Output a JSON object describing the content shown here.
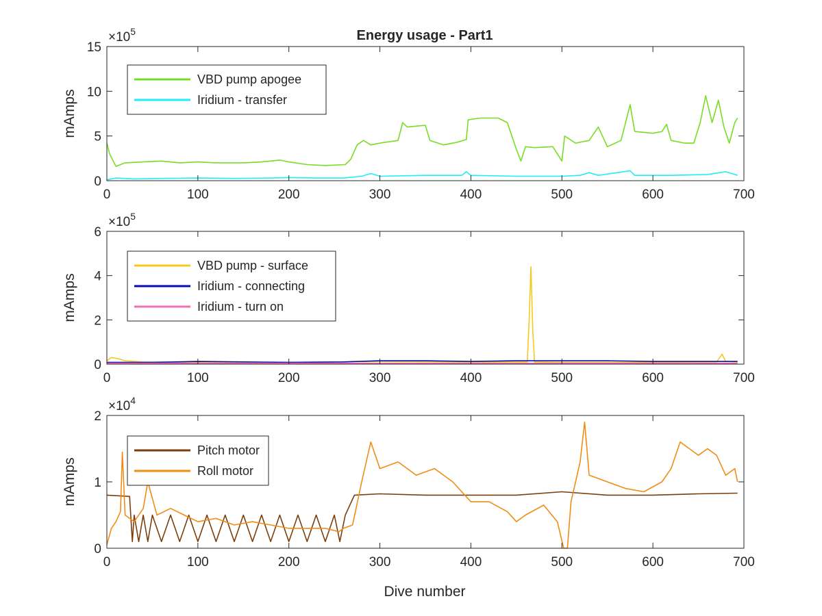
{
  "figure": {
    "title": "Energy usage - Part1",
    "xlabel": "Dive number"
  },
  "chart_data": [
    {
      "type": "line",
      "title": "Energy usage - Part1",
      "ylabel": "mAmps",
      "exponent": "5",
      "xlim": [
        0,
        700
      ],
      "ylim": [
        0,
        15
      ],
      "xticks": [
        "0",
        "100",
        "200",
        "300",
        "400",
        "500",
        "600",
        "700"
      ],
      "yticks": [
        "0",
        "5",
        "10",
        "15"
      ],
      "legend_position": "top-left",
      "series": [
        {
          "name": "VBD pump apogee",
          "color": "#77DD22",
          "points": [
            [
              0,
              4.2
            ],
            [
              3,
              3.0
            ],
            [
              10,
              1.6
            ],
            [
              20,
              2.0
            ],
            [
              40,
              2.1
            ],
            [
              60,
              2.2
            ],
            [
              80,
              2.0
            ],
            [
              100,
              2.1
            ],
            [
              120,
              2.0
            ],
            [
              150,
              2.0
            ],
            [
              170,
              2.1
            ],
            [
              190,
              2.3
            ],
            [
              200,
              2.1
            ],
            [
              220,
              1.8
            ],
            [
              240,
              1.7
            ],
            [
              262,
              1.8
            ],
            [
              268,
              2.4
            ],
            [
              275,
              4.0
            ],
            [
              282,
              4.5
            ],
            [
              290,
              4.0
            ],
            [
              300,
              4.2
            ],
            [
              320,
              4.5
            ],
            [
              325,
              6.5
            ],
            [
              330,
              6.0
            ],
            [
              350,
              6.2
            ],
            [
              355,
              4.5
            ],
            [
              370,
              4.0
            ],
            [
              385,
              4.3
            ],
            [
              395,
              4.6
            ],
            [
              397,
              6.8
            ],
            [
              410,
              7.0
            ],
            [
              430,
              7.0
            ],
            [
              440,
              6.5
            ],
            [
              450,
              3.5
            ],
            [
              455,
              2.2
            ],
            [
              460,
              3.8
            ],
            [
              470,
              3.7
            ],
            [
              490,
              3.8
            ],
            [
              500,
              2.2
            ],
            [
              503,
              5.0
            ],
            [
              515,
              4.2
            ],
            [
              530,
              4.5
            ],
            [
              540,
              6.0
            ],
            [
              550,
              3.8
            ],
            [
              565,
              4.5
            ],
            [
              575,
              8.5
            ],
            [
              580,
              5.5
            ],
            [
              600,
              5.3
            ],
            [
              610,
              5.5
            ],
            [
              615,
              6.3
            ],
            [
              620,
              4.5
            ],
            [
              635,
              4.2
            ],
            [
              645,
              4.2
            ],
            [
              652,
              6.5
            ],
            [
              658,
              9.5
            ],
            [
              665,
              6.5
            ],
            [
              672,
              9.0
            ],
            [
              678,
              6.0
            ],
            [
              684,
              4.2
            ],
            [
              690,
              6.5
            ],
            [
              693,
              7.0
            ]
          ]
        },
        {
          "name": "Iridium - transfer",
          "color": "#1EEEF5",
          "points": [
            [
              0,
              0.1
            ],
            [
              10,
              0.3
            ],
            [
              30,
              0.2
            ],
            [
              60,
              0.25
            ],
            [
              100,
              0.3
            ],
            [
              140,
              0.25
            ],
            [
              180,
              0.3
            ],
            [
              200,
              0.35
            ],
            [
              230,
              0.3
            ],
            [
              260,
              0.3
            ],
            [
              280,
              0.5
            ],
            [
              290,
              0.8
            ],
            [
              300,
              0.5
            ],
            [
              350,
              0.6
            ],
            [
              390,
              0.6
            ],
            [
              395,
              1.0
            ],
            [
              400,
              0.6
            ],
            [
              450,
              0.5
            ],
            [
              500,
              0.5
            ],
            [
              520,
              0.6
            ],
            [
              530,
              0.9
            ],
            [
              540,
              0.6
            ],
            [
              575,
              1.1
            ],
            [
              580,
              0.6
            ],
            [
              620,
              0.6
            ],
            [
              660,
              0.7
            ],
            [
              680,
              1.0
            ],
            [
              693,
              0.6
            ]
          ]
        }
      ]
    },
    {
      "type": "line",
      "ylabel": "mAmps",
      "exponent": "5",
      "xlim": [
        0,
        700
      ],
      "ylim": [
        0,
        6
      ],
      "xticks": [
        "0",
        "100",
        "200",
        "300",
        "400",
        "500",
        "600",
        "700"
      ],
      "yticks": [
        "0",
        "2",
        "4",
        "6"
      ],
      "legend_position": "top-left",
      "series": [
        {
          "name": "VBD pump - surface",
          "color": "#F5C81E",
          "points": [
            [
              0,
              0.15
            ],
            [
              5,
              0.3
            ],
            [
              12,
              0.25
            ],
            [
              20,
              0.15
            ],
            [
              40,
              0.1
            ],
            [
              100,
              0.08
            ],
            [
              200,
              0.08
            ],
            [
              300,
              0.12
            ],
            [
              400,
              0.1
            ],
            [
              462,
              0.1
            ],
            [
              464,
              2.0
            ],
            [
              466,
              4.4
            ],
            [
              468,
              1.5
            ],
            [
              470,
              0.1
            ],
            [
              500,
              0.08
            ],
            [
              600,
              0.08
            ],
            [
              670,
              0.1
            ],
            [
              676,
              0.45
            ],
            [
              680,
              0.12
            ],
            [
              693,
              0.1
            ]
          ]
        },
        {
          "name": "Iridium - connecting",
          "color": "#0A0AB4",
          "points": [
            [
              0,
              0.08
            ],
            [
              50,
              0.08
            ],
            [
              100,
              0.12
            ],
            [
              200,
              0.08
            ],
            [
              260,
              0.1
            ],
            [
              300,
              0.15
            ],
            [
              350,
              0.15
            ],
            [
              400,
              0.12
            ],
            [
              450,
              0.15
            ],
            [
              500,
              0.15
            ],
            [
              550,
              0.15
            ],
            [
              600,
              0.12
            ],
            [
              650,
              0.12
            ],
            [
              693,
              0.12
            ]
          ]
        },
        {
          "name": "Iridium - turn on",
          "color": "#F06EB4",
          "points": [
            [
              0,
              0.04
            ],
            [
              100,
              0.04
            ],
            [
              200,
              0.04
            ],
            [
              300,
              0.04
            ],
            [
              400,
              0.04
            ],
            [
              500,
              0.04
            ],
            [
              600,
              0.04
            ],
            [
              693,
              0.04
            ]
          ]
        }
      ]
    },
    {
      "type": "line",
      "ylabel": "mAmps",
      "exponent": "4",
      "xlim": [
        0,
        700
      ],
      "ylim": [
        0,
        2
      ],
      "xticks": [
        "0",
        "100",
        "200",
        "300",
        "400",
        "500",
        "600",
        "700"
      ],
      "yticks": [
        "0",
        "1",
        "2"
      ],
      "legend_position": "top-left",
      "series": [
        {
          "name": "Pitch motor",
          "color": "#7A3E0C",
          "points": [
            [
              0,
              0.8
            ],
            [
              25,
              0.78
            ],
            [
              28,
              0.1
            ],
            [
              30,
              0.5
            ],
            [
              35,
              0.1
            ],
            [
              40,
              0.5
            ],
            [
              45,
              0.1
            ],
            [
              50,
              0.5
            ],
            [
              60,
              0.1
            ],
            [
              70,
              0.5
            ],
            [
              80,
              0.1
            ],
            [
              90,
              0.5
            ],
            [
              100,
              0.1
            ],
            [
              110,
              0.5
            ],
            [
              120,
              0.1
            ],
            [
              130,
              0.5
            ],
            [
              140,
              0.1
            ],
            [
              150,
              0.5
            ],
            [
              160,
              0.1
            ],
            [
              170,
              0.5
            ],
            [
              180,
              0.1
            ],
            [
              190,
              0.5
            ],
            [
              200,
              0.1
            ],
            [
              210,
              0.5
            ],
            [
              220,
              0.1
            ],
            [
              230,
              0.5
            ],
            [
              240,
              0.1
            ],
            [
              250,
              0.5
            ],
            [
              256,
              0.1
            ],
            [
              262,
              0.5
            ],
            [
              272,
              0.8
            ],
            [
              300,
              0.82
            ],
            [
              350,
              0.8
            ],
            [
              400,
              0.8
            ],
            [
              450,
              0.8
            ],
            [
              500,
              0.85
            ],
            [
              550,
              0.8
            ],
            [
              600,
              0.8
            ],
            [
              650,
              0.82
            ],
            [
              693,
              0.83
            ]
          ]
        },
        {
          "name": "Roll motor",
          "color": "#F08C14",
          "points": [
            [
              0,
              0.05
            ],
            [
              5,
              0.3
            ],
            [
              10,
              0.4
            ],
            [
              15,
              0.55
            ],
            [
              17,
              1.45
            ],
            [
              20,
              0.5
            ],
            [
              30,
              0.4
            ],
            [
              40,
              0.6
            ],
            [
              45,
              1.0
            ],
            [
              55,
              0.5
            ],
            [
              70,
              0.6
            ],
            [
              85,
              0.5
            ],
            [
              100,
              0.4
            ],
            [
              120,
              0.45
            ],
            [
              140,
              0.35
            ],
            [
              160,
              0.4
            ],
            [
              180,
              0.35
            ],
            [
              200,
              0.3
            ],
            [
              220,
              0.3
            ],
            [
              240,
              0.3
            ],
            [
              255,
              0.25
            ],
            [
              260,
              0.3
            ],
            [
              270,
              0.35
            ],
            [
              280,
              1.0
            ],
            [
              290,
              1.6
            ],
            [
              300,
              1.2
            ],
            [
              320,
              1.3
            ],
            [
              340,
              1.1
            ],
            [
              360,
              1.2
            ],
            [
              380,
              1.0
            ],
            [
              400,
              0.7
            ],
            [
              420,
              0.7
            ],
            [
              440,
              0.55
            ],
            [
              450,
              0.4
            ],
            [
              460,
              0.5
            ],
            [
              480,
              0.65
            ],
            [
              495,
              0.4
            ],
            [
              502,
              0.0
            ],
            [
              506,
              0.0
            ],
            [
              510,
              0.7
            ],
            [
              520,
              1.3
            ],
            [
              525,
              1.9
            ],
            [
              530,
              1.1
            ],
            [
              550,
              1.0
            ],
            [
              570,
              0.9
            ],
            [
              590,
              0.85
            ],
            [
              610,
              1.0
            ],
            [
              620,
              1.2
            ],
            [
              630,
              1.6
            ],
            [
              640,
              1.5
            ],
            [
              650,
              1.4
            ],
            [
              660,
              1.5
            ],
            [
              670,
              1.4
            ],
            [
              680,
              1.1
            ],
            [
              690,
              1.2
            ],
            [
              693,
              1.0
            ]
          ]
        }
      ]
    }
  ]
}
